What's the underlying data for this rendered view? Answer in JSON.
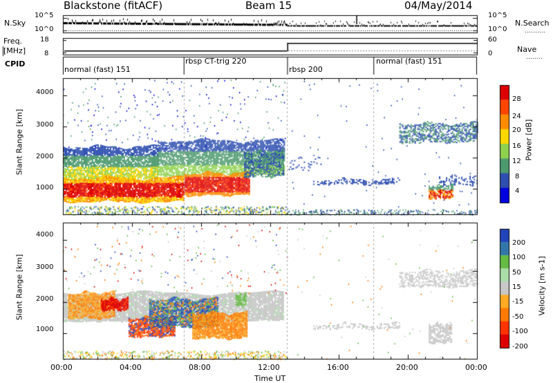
{
  "header": {
    "station": "Blackstone (fitACF)",
    "beam": "Beam 15",
    "date": "04/May/2014"
  },
  "top_panels": {
    "nsky_label": "N.Sky",
    "nsky_tick_hi": "10^5",
    "nsky_tick_lo": "10^0",
    "nsearch_label": "N.Search",
    "nsearch_tick_hi": "10^5",
    "nsearch_tick_lo": "10^0",
    "freq_label": "Freq.",
    "freq_unit": "[MHz]",
    "freq_tick_hi": "18",
    "freq_tick_lo": "8",
    "nave_label": "Nave",
    "nave_tick_hi": "60",
    "nave_tick_lo": "0",
    "cpid_label": "CPID",
    "cpid_segments": [
      {
        "label": "normal (fast) 151",
        "start_hour": 0
      },
      {
        "label": "rbsp CT-trig 220",
        "start_hour": 7
      },
      {
        "label": "rbsp 200",
        "start_hour": 13
      },
      {
        "label": "normal (fast) 151",
        "start_hour": 18
      }
    ]
  },
  "chart_data": [
    {
      "type": "heatmap",
      "title": "Power",
      "ylabel": "Slant Range [km]",
      "xlabel": "Time UT",
      "xlim": [
        0,
        24
      ],
      "ylim": [
        180,
        4550
      ],
      "y_ticks": [
        1000,
        2000,
        3000,
        4000
      ],
      "x_tick_labels": [
        "00:00",
        "04:00",
        "08:00",
        "12:00",
        "16:00",
        "20:00",
        "00:00"
      ],
      "colorbar_label": "Power [dB]",
      "colorbar_ticks": [
        "28",
        "24",
        "20",
        "16",
        "12",
        "8",
        "4"
      ],
      "colorbar_colors": [
        "#dd0000",
        "#ff4500",
        "#ff8c00",
        "#ffd700",
        "#8fd14f",
        "#4e9a6f",
        "#2e4fb0",
        "#0000dd"
      ],
      "regions": [
        {
          "t": [
            0.0,
            7.0
          ],
          "range": [
            600,
            1300
          ],
          "power_db": 28
        },
        {
          "t": [
            7.0,
            10.8
          ],
          "range": [
            800,
            1450
          ],
          "power_db": 26
        },
        {
          "t": [
            0.0,
            5.5
          ],
          "range": [
            1300,
            2300
          ],
          "power_db": 14
        },
        {
          "t": [
            5.5,
            12.8
          ],
          "range": [
            1450,
            2500
          ],
          "power_db": 14
        },
        {
          "t": [
            14.5,
            19.5
          ],
          "range": [
            1150,
            1300
          ],
          "power_db": 4
        },
        {
          "t": [
            19.5,
            24.0
          ],
          "range": [
            2500,
            3100
          ],
          "power_db": 8
        },
        {
          "t": [
            21.2,
            22.6
          ],
          "range": [
            700,
            1100
          ],
          "power_db": 22
        }
      ]
    },
    {
      "type": "heatmap",
      "title": "Velocity",
      "ylabel": "Slant Range [km]",
      "xlabel": "Time UT",
      "xlim": [
        0,
        24
      ],
      "ylim": [
        180,
        4550
      ],
      "y_ticks": [
        1000,
        2000,
        3000,
        4000
      ],
      "x_tick_labels": [
        "00:00",
        "04:00",
        "08:00",
        "12:00",
        "16:00",
        "20:00",
        "00:00"
      ],
      "colorbar_label": "Velocity [m s-1]",
      "colorbar_ticks": [
        "200",
        "100",
        "50",
        "15",
        "-15",
        "-50",
        "-100",
        "-200"
      ],
      "colorbar_colors": [
        "#2244bb",
        "#3377aa",
        "#66bb44",
        "#aaddaa",
        "#c8c8c8",
        "#ffaa22",
        "#ff7a00",
        "#ff3300",
        "#dd0000"
      ],
      "regions": [
        {
          "t": [
            0.0,
            12.8
          ],
          "range": [
            1400,
            2300
          ],
          "velocity": 0
        },
        {
          "t": [
            0.3,
            3.0
          ],
          "range": [
            1500,
            2300
          ],
          "velocity": -60
        },
        {
          "t": [
            2.2,
            3.8
          ],
          "range": [
            1750,
            2100
          ],
          "velocity": -200
        },
        {
          "t": [
            3.8,
            6.5
          ],
          "range": [
            900,
            1500
          ],
          "velocity": -120
        },
        {
          "t": [
            5.0,
            9.0
          ],
          "range": [
            1200,
            2100
          ],
          "velocity": 120
        },
        {
          "t": [
            7.5,
            10.7
          ],
          "range": [
            850,
            1650
          ],
          "velocity": -80
        },
        {
          "t": [
            10.0,
            10.6
          ],
          "range": [
            1900,
            2200
          ],
          "velocity": 60
        },
        {
          "t": [
            14.5,
            19.5
          ],
          "range": [
            1150,
            1300
          ],
          "velocity": 0
        },
        {
          "t": [
            19.5,
            24.0
          ],
          "range": [
            2500,
            3000
          ],
          "velocity": 0
        },
        {
          "t": [
            21.2,
            22.5
          ],
          "range": [
            700,
            1300
          ],
          "velocity": 0
        }
      ]
    }
  ],
  "colors": {
    "grey": "#c8c8c8",
    "dashed_line": "#aaaaaa"
  }
}
